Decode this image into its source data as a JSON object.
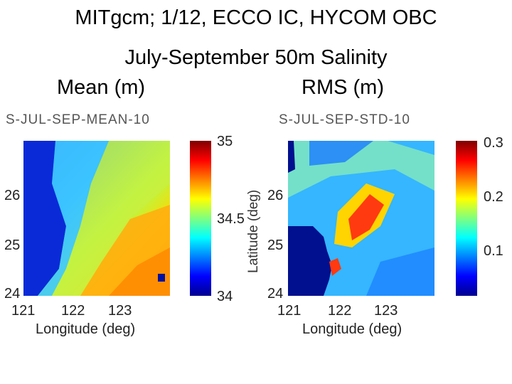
{
  "header": {
    "line1": "MITgcm; 1/12, ECCO IC, HYCOM OBC",
    "line2": "July-September 50m Salinity",
    "mean_label": "Mean  (m)",
    "rms_label": "RMS  (m)"
  },
  "chart_data": [
    {
      "type": "heatmap",
      "title": "S-JUL-SEP-MEAN-10",
      "xlabel": "Longitude (deg)",
      "ylabel": "",
      "xlim": [
        121,
        124.3
      ],
      "ylim": [
        24,
        27
      ],
      "xticks": [
        "121",
        "122",
        "123"
      ],
      "yticks": [
        "24",
        "25",
        "26"
      ],
      "colorbar": {
        "min": 34,
        "max": 35,
        "ticks": [
          "34",
          "34.5",
          "35"
        ]
      },
      "colormap": "jet",
      "colors": {
        "low": "#00008f",
        "mid": "#7fff7f",
        "high": "#800000"
      }
    },
    {
      "type": "heatmap",
      "title": "S-JUL-SEP-STD-10",
      "xlabel": "Longitude (deg)",
      "ylabel": "Latitude (deg)",
      "xlim": [
        121,
        124.3
      ],
      "ylim": [
        24,
        27
      ],
      "xticks": [
        "121",
        "122",
        "123"
      ],
      "yticks": [
        "24",
        "25",
        "26"
      ],
      "colorbar": {
        "min": 0,
        "max": 0.3,
        "ticks": [
          "0.1",
          "0.2",
          "0.3"
        ]
      },
      "colormap": "jet",
      "colors": {
        "low": "#00008f",
        "mid": "#7fff7f",
        "high": "#800000"
      }
    }
  ]
}
